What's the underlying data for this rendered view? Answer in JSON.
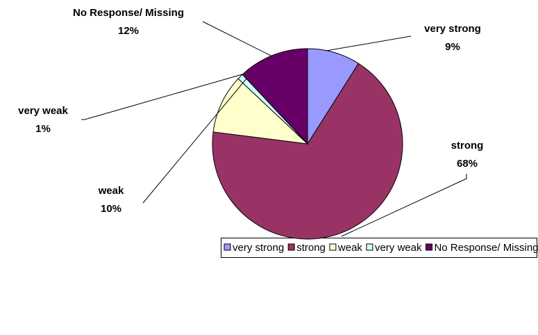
{
  "chart_data": {
    "type": "pie",
    "categories": [
      "very strong",
      "strong",
      "weak",
      "very weak",
      "No Response/  Missing"
    ],
    "values": [
      9,
      68,
      10,
      1,
      12
    ],
    "value_labels": [
      "9%",
      "68%",
      "10%",
      "1%",
      "12%"
    ],
    "colors": [
      "#9999ff",
      "#993366",
      "#ffffcc",
      "#ccffff",
      "#660066"
    ],
    "legend": "bottom-right"
  }
}
